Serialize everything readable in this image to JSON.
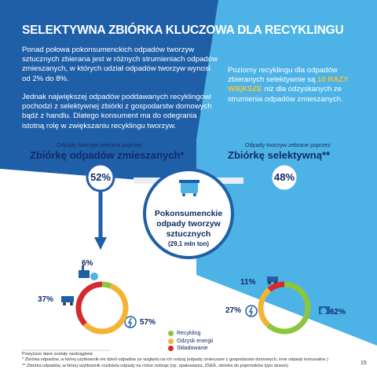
{
  "title": "SELEKTYWNA ZBIÓRKA KLUCZOWA DLA RECYKLINGU",
  "intro_paragraphs": [
    "Ponad połowa pokonsumenckich odpadów tworzyw sztucznych zbierana jest w różnych strumieniach odpadów zmieszanych, w których udział odpadów tworzyw wynosi od 2% do 8%.",
    "Jednak największej odpadów poddawanych recyklingowi pochodzi z selektywnej zbiórki z gospodarstw domowych bądź z handlu. Dlatego konsument ma do odegrania istotną rolę w zwiększaniu recyklingu tworzyw."
  ],
  "right_note": {
    "before": "Poziomy recyklingu dla odpadów zbieranych selektywnie są ",
    "highlight": "10 RAZY WIĘKSZE",
    "after": " niż dla odzyskanych ze strumienia odpadów zmieszanych."
  },
  "left_section": {
    "small_label": "Odpady tworzyw zebrane poprzez",
    "big_label": "Zbiórkę odpadów zmieszanych*",
    "share": "52%"
  },
  "right_section": {
    "small_label": "Odpady tworzyw zebrane poprzez",
    "big_label": "Zbiórkę selektywną**",
    "share": "48%"
  },
  "center": {
    "title": "Pokonsumenckie odpady tworzyw sztucznych",
    "subtitle": "(29,1 mln ton)"
  },
  "chart_data": [
    {
      "type": "pie",
      "name": "Zbiórka odpadów zmieszanych",
      "labels": [
        "Recykling",
        "Odzysk energii",
        "Składowanie"
      ],
      "values": [
        6,
        57,
        37
      ],
      "value_labels": [
        "6%",
        "57%",
        "37%"
      ],
      "colors": [
        "#8cc63f",
        "#f5b335",
        "#d42a2f"
      ]
    },
    {
      "type": "pie",
      "name": "Zbiórka selektywna",
      "labels": [
        "Recykling",
        "Odzysk energii",
        "Składowanie"
      ],
      "values": [
        62,
        27,
        11
      ],
      "value_labels": [
        "62%",
        "27%",
        "11%"
      ],
      "colors": [
        "#8cc63f",
        "#f5b335",
        "#d42a2f"
      ]
    }
  ],
  "legend": [
    {
      "label": "Recykling",
      "color": "#8cc63f"
    },
    {
      "label": "Odzysk energii",
      "color": "#f5b335"
    },
    {
      "label": "Składowanie",
      "color": "#d42a2f"
    }
  ],
  "footer": {
    "rounding": "Powyższe dane zostały zaokrąglone",
    "note1": "* Zbiórka odpadów, w której użytkownik nie dzieli odpadów ze względu na ich rodzaj (odpady zmieszane z gospodarstw domowych, inne odpady komunalne )",
    "note2": "** Zbiórka odpadów, w której użytkownik rozdziela odpady na różne rodzaje (np. opakowania, ZSEE, zbiórka do pojemników typu dzwon)"
  },
  "page_number": "15",
  "colors": {
    "dark_blue": "#1f5fa8",
    "light_blue": "#4db3e6",
    "navy_text": "#132a68",
    "highlight": "#f5c242"
  },
  "icons": [
    "dumpster-icon",
    "factory-icon",
    "recycle-icon",
    "energy-icon",
    "truck-icon"
  ]
}
